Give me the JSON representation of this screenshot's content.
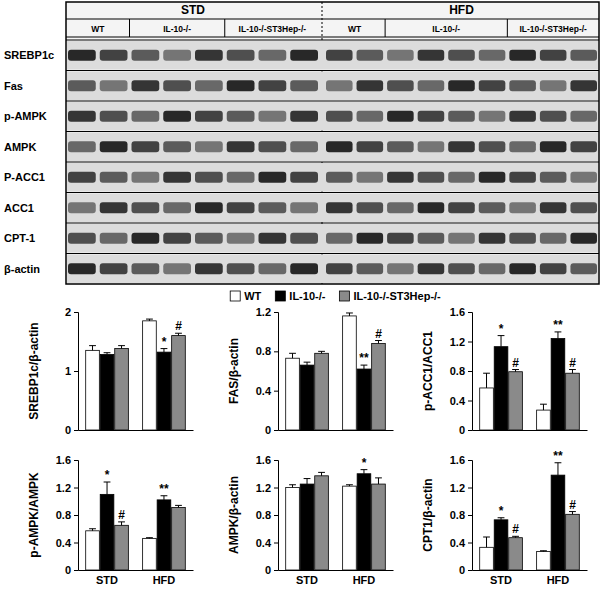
{
  "blot": {
    "conditions": [
      "STD",
      "HFD"
    ],
    "groups": [
      "WT",
      "IL-10-/-",
      "IL-10-/-ST3Hep-/-"
    ],
    "proteins": [
      "SREBP1c",
      "Fas",
      "p-AMPK",
      "AMPK",
      "P-ACC1",
      "ACC1",
      "CPT-1",
      "β-actin"
    ]
  },
  "chart_data": [
    {
      "type": "bar",
      "ylabel": "SREBP1c/β-actin",
      "categories": [
        null,
        null
      ],
      "tick_labels": "y",
      "ylim": [
        0,
        2
      ],
      "yticks": [
        0,
        1,
        2
      ],
      "series": [
        {
          "color": "#ffffff",
          "values": [
            1.35,
            1.85
          ],
          "errors": [
            0.08,
            0.03
          ]
        },
        {
          "color": "#000000",
          "values": [
            1.28,
            1.32
          ],
          "errors": [
            0.03,
            0.06
          ],
          "significance": [
            null,
            "*"
          ]
        },
        {
          "color": "#8a8a8a",
          "values": [
            1.38,
            1.6
          ],
          "errors": [
            0.05,
            0.04
          ],
          "significance": [
            null,
            "#"
          ]
        }
      ]
    },
    {
      "type": "bar",
      "ylabel": "FAS/β-actin",
      "categories": [
        null,
        null
      ],
      "tick_labels": "y",
      "legend": "top",
      "ylim": [
        0,
        1.2
      ],
      "yticks": [
        0,
        0.4,
        0.8,
        1.2
      ],
      "series": [
        {
          "name": "WT",
          "color": "#ffffff",
          "values": [
            0.73,
            1.16
          ],
          "errors": [
            0.05,
            0.03
          ]
        },
        {
          "name": "IL-10-/-",
          "color": "#000000",
          "values": [
            0.66,
            0.62
          ],
          "errors": [
            0.03,
            0.04
          ],
          "significance": [
            null,
            "**"
          ]
        },
        {
          "name": "IL-10-/-ST3Hep-/-",
          "color": "#8a8a8a",
          "values": [
            0.78,
            0.88
          ],
          "errors": [
            0.02,
            0.03
          ],
          "significance": [
            null,
            "#"
          ]
        }
      ]
    },
    {
      "type": "bar",
      "ylabel": "p-ACC1/ACC1",
      "categories": [
        null,
        null
      ],
      "tick_labels": "y",
      "ylim": [
        0,
        1.6
      ],
      "yticks": [
        0,
        0.4,
        0.8,
        1.2,
        1.6
      ],
      "series": [
        {
          "color": "#ffffff",
          "values": [
            0.57,
            0.27
          ],
          "errors": [
            0.2,
            0.08
          ]
        },
        {
          "color": "#000000",
          "values": [
            1.13,
            1.24
          ],
          "errors": [
            0.15,
            0.09
          ],
          "significance": [
            "*",
            "**"
          ]
        },
        {
          "color": "#8a8a8a",
          "values": [
            0.79,
            0.77
          ],
          "errors": [
            0.03,
            0.05
          ],
          "significance": [
            "#",
            "#"
          ]
        }
      ]
    },
    {
      "type": "bar",
      "ylabel": "p-AMPK/AMPK",
      "categories": [
        "STD",
        "HFD"
      ],
      "ylim": [
        0,
        1.6
      ],
      "yticks": [
        0,
        0.4,
        0.8,
        1.2,
        1.6
      ],
      "series": [
        {
          "color": "#ffffff",
          "values": [
            0.57,
            0.46
          ],
          "errors": [
            0.03,
            0.01
          ]
        },
        {
          "color": "#000000",
          "values": [
            1.1,
            1.02
          ],
          "errors": [
            0.18,
            0.06
          ],
          "significance": [
            "*",
            "**"
          ]
        },
        {
          "color": "#8a8a8a",
          "values": [
            0.65,
            0.91
          ],
          "errors": [
            0.05,
            0.03
          ],
          "significance": [
            "#",
            null
          ]
        }
      ]
    },
    {
      "type": "bar",
      "ylabel": "AMPK/β-actin",
      "categories": [
        "STD",
        "HFD"
      ],
      "ylim": [
        0,
        1.6
      ],
      "yticks": [
        0,
        0.4,
        0.8,
        1.2,
        1.6
      ],
      "series": [
        {
          "color": "#ffffff",
          "values": [
            1.2,
            1.22
          ],
          "errors": [
            0.04,
            0.02
          ]
        },
        {
          "color": "#000000",
          "values": [
            1.25,
            1.4
          ],
          "errors": [
            0.08,
            0.06
          ],
          "significance": [
            null,
            "*"
          ]
        },
        {
          "color": "#8a8a8a",
          "values": [
            1.37,
            1.25
          ],
          "errors": [
            0.05,
            0.09
          ]
        }
      ]
    },
    {
      "type": "bar",
      "ylabel": "CPT1/β-actin",
      "categories": [
        "STD",
        "HFD"
      ],
      "ylim": [
        0,
        1.6
      ],
      "yticks": [
        0,
        0.4,
        0.8,
        1.2,
        1.6
      ],
      "series": [
        {
          "color": "#ffffff",
          "values": [
            0.33,
            0.27
          ],
          "errors": [
            0.15,
            0.01
          ]
        },
        {
          "color": "#000000",
          "values": [
            0.73,
            1.38
          ],
          "errors": [
            0.03,
            0.18
          ],
          "significance": [
            "*",
            "**"
          ]
        },
        {
          "color": "#8a8a8a",
          "values": [
            0.47,
            0.81
          ],
          "errors": [
            0.02,
            0.04
          ],
          "significance": [
            "#",
            "#"
          ]
        }
      ]
    }
  ]
}
